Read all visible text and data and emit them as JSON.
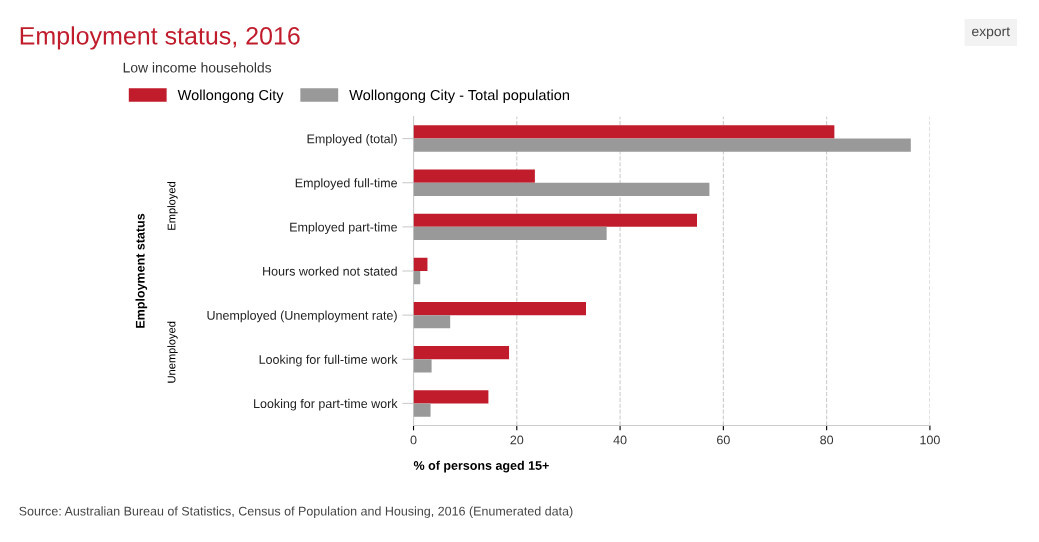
{
  "chart_data": {
    "type": "bar",
    "orientation": "horizontal",
    "title": "Employment status, 2016",
    "legend_title": "Low income households",
    "legend": "top left",
    "xlabel": "% of persons aged 15+",
    "ylabel": "Employment status",
    "categories": [
      "Employed (total)",
      "Employed full-time",
      "Employed part-time",
      "Hours worked not stated",
      "Unemployed (Unemployment rate)",
      "Looking for full-time work",
      "Looking for part-time work"
    ],
    "series": [
      {
        "name": "Wollongong City",
        "color": "#c01c2c",
        "values": [
          81.5,
          23.5,
          54.9,
          2.7,
          33.4,
          18.5,
          14.5
        ]
      },
      {
        "name": "Wollongong City - Total population",
        "color": "#999999",
        "values": [
          96.3,
          57.3,
          37.4,
          1.3,
          7.1,
          3.5,
          3.3
        ]
      }
    ],
    "xlim": [
      0,
      100
    ],
    "xticks": [
      0,
      20,
      40,
      60,
      80,
      100
    ],
    "grid": "x",
    "annotations": [
      "Employed",
      "Unemployed",
      "export",
      "Source: Australian Bureau of Statistics, Census of Population and Housing, 2016 (Enumerated data)"
    ]
  }
}
